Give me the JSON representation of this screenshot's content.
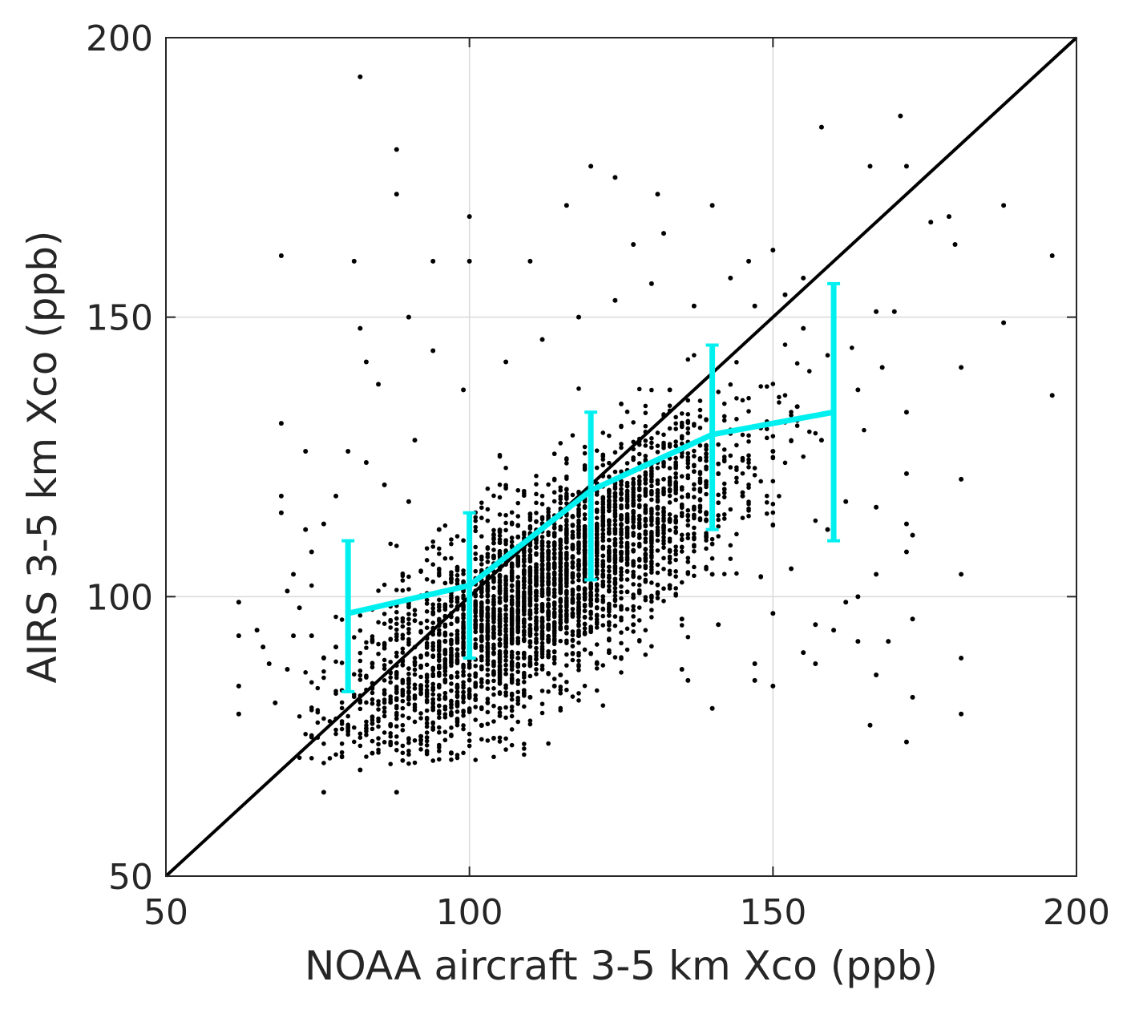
{
  "chart_data": {
    "type": "scatter",
    "title": "",
    "xlabel": "NOAA aircraft 3-5 km Xco (ppb)",
    "ylabel": "AIRS 3-5 km Xco (ppb)",
    "xlim": [
      50,
      200
    ],
    "ylim": [
      50,
      200
    ],
    "xticks": [
      50,
      100,
      150,
      200
    ],
    "yticks": [
      50,
      100,
      150,
      200
    ],
    "x_tick_labels": [
      "50",
      "100",
      "150",
      "200"
    ],
    "y_tick_labels": [
      "50",
      "100",
      "150",
      "200"
    ],
    "grid": true,
    "legend": "none",
    "colors": {
      "points": "#000000",
      "one_to_one": "#000000",
      "binned_mean": "#00f0f0",
      "grid": "#d9d9d9",
      "axes": "#262626"
    },
    "one_to_one_line": {
      "x": [
        50,
        200
      ],
      "y": [
        50,
        200
      ]
    },
    "binned_mean": {
      "x": [
        80,
        100,
        120,
        140,
        160
      ],
      "y": [
        97,
        102,
        119,
        129,
        133
      ],
      "y_low": [
        83,
        89,
        103,
        112,
        110
      ],
      "y_high": [
        110,
        115,
        133,
        145,
        156
      ]
    },
    "scatter_cloud": {
      "description_note": "",
      "approx_point_count": 3500,
      "core": {
        "x_center": 112,
        "slope": 0.72,
        "intercept": 20,
        "x_sd": 16,
        "y_sd": 9
      }
    },
    "scatter_points": [
      [
        82,
        193
      ],
      [
        88,
        180
      ],
      [
        88,
        172
      ],
      [
        69,
        161
      ],
      [
        81,
        160
      ],
      [
        94,
        160
      ],
      [
        100,
        168
      ],
      [
        100,
        160
      ],
      [
        120,
        177
      ],
      [
        124,
        175
      ],
      [
        131,
        172
      ],
      [
        140,
        170
      ],
      [
        150,
        162
      ],
      [
        158,
        184
      ],
      [
        166,
        177
      ],
      [
        171,
        186
      ],
      [
        172,
        177
      ],
      [
        179,
        168
      ],
      [
        180,
        163
      ],
      [
        188,
        170
      ],
      [
        196,
        161
      ],
      [
        188,
        149
      ],
      [
        196,
        136
      ],
      [
        181,
        141
      ],
      [
        181,
        121
      ],
      [
        181,
        104
      ],
      [
        181,
        89
      ],
      [
        181,
        79
      ],
      [
        172,
        74
      ],
      [
        166,
        77
      ],
      [
        157,
        95
      ],
      [
        147,
        85
      ],
      [
        136,
        85
      ],
      [
        76,
        65
      ],
      [
        88,
        65
      ],
      [
        82,
        69
      ],
      [
        62,
        99
      ],
      [
        62,
        93
      ],
      [
        62,
        84
      ],
      [
        62,
        79
      ],
      [
        65,
        94
      ],
      [
        67,
        88
      ],
      [
        68,
        81
      ],
      [
        69,
        131
      ],
      [
        69,
        118
      ],
      [
        69,
        115
      ],
      [
        70,
        101
      ],
      [
        71,
        104
      ],
      [
        73,
        126
      ],
      [
        73,
        112
      ],
      [
        90,
        150
      ],
      [
        94,
        144
      ],
      [
        82,
        148
      ],
      [
        83,
        142
      ],
      [
        110,
        160
      ],
      [
        116,
        170
      ],
      [
        127,
        163
      ],
      [
        132,
        165
      ],
      [
        146,
        160
      ],
      [
        152,
        154
      ],
      [
        155,
        157
      ],
      [
        160,
        147
      ],
      [
        164,
        137
      ],
      [
        168,
        141
      ],
      [
        170,
        151
      ],
      [
        172,
        133
      ],
      [
        172,
        122
      ],
      [
        172,
        113
      ],
      [
        172,
        108
      ],
      [
        169,
        92
      ],
      [
        167,
        86
      ],
      [
        164,
        92
      ],
      [
        162,
        99
      ],
      [
        159,
        112
      ],
      [
        153,
        105
      ],
      [
        150,
        97
      ],
      [
        147,
        88
      ],
      [
        141,
        95
      ],
      [
        135,
        96
      ],
      [
        133,
        137
      ],
      [
        128,
        118
      ],
      [
        123,
        90
      ],
      [
        118,
        93
      ],
      [
        115,
        86
      ],
      [
        110,
        82
      ],
      [
        105,
        80
      ],
      [
        102,
        77
      ],
      [
        97,
        72
      ],
      [
        92,
        75
      ],
      [
        87,
        77
      ],
      [
        84,
        72
      ],
      [
        80,
        86
      ],
      [
        78,
        91
      ],
      [
        76,
        89
      ],
      [
        74,
        93
      ],
      [
        85,
        138
      ],
      [
        91,
        128
      ],
      [
        99,
        137
      ],
      [
        106,
        142
      ],
      [
        112,
        146
      ],
      [
        118,
        150
      ],
      [
        124,
        153
      ],
      [
        130,
        156
      ],
      [
        137,
        152
      ],
      [
        143,
        157
      ],
      [
        147,
        152
      ],
      [
        155,
        148
      ],
      [
        160,
        152
      ],
      [
        167,
        151
      ],
      [
        176,
        167
      ],
      [
        167,
        116
      ],
      [
        167,
        104
      ],
      [
        164,
        100
      ],
      [
        160,
        94
      ],
      [
        157,
        88
      ],
      [
        173,
        111
      ],
      [
        173,
        96
      ],
      [
        173,
        82
      ],
      [
        162,
        117
      ],
      [
        158,
        128
      ],
      [
        154,
        134
      ],
      [
        150,
        126
      ],
      [
        145,
        118
      ],
      [
        140,
        104
      ],
      [
        133,
        102
      ],
      [
        127,
        95
      ],
      [
        121,
        88
      ],
      [
        114,
        84
      ],
      [
        108,
        89
      ],
      [
        101,
        95
      ],
      [
        95,
        112
      ],
      [
        90,
        117
      ],
      [
        86,
        120
      ],
      [
        83,
        124
      ],
      [
        80,
        126
      ],
      [
        78,
        118
      ],
      [
        76,
        113
      ],
      [
        74,
        108
      ],
      [
        72,
        98
      ],
      [
        71,
        93
      ],
      [
        70,
        87
      ],
      [
        66,
        91
      ],
      [
        140,
        80
      ],
      [
        150,
        84
      ],
      [
        155,
        90
      ],
      [
        135,
        87
      ]
    ]
  },
  "icons": {
    "points": "dot-marker",
    "binned_mean": "error-bar-marker"
  }
}
